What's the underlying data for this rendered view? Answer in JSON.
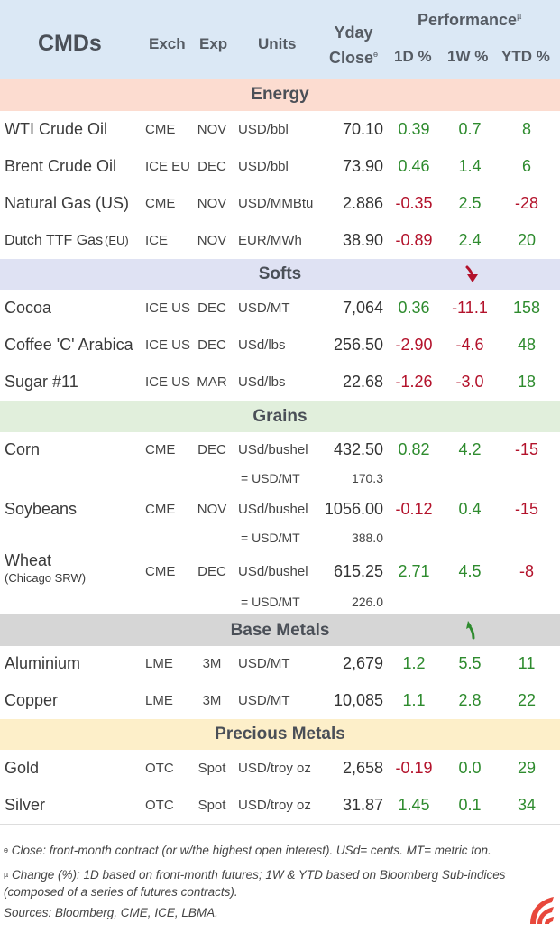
{
  "header": {
    "title": "CMDs",
    "exch": "Exch",
    "exp": "Exp",
    "units": "Units",
    "yday": "Yday",
    "close": "Close",
    "close_mark": "ɵ",
    "performance": "Performance",
    "performance_mark": "µ",
    "d1": "1D %",
    "w1": "1W %",
    "ytd": "YTD %"
  },
  "colors": {
    "header_bg": "#dbe8f5",
    "energy_bg": "#fcdcd0",
    "softs_bg": "#dfe2f3",
    "grains_bg": "#e1efdc",
    "base_metals_bg": "#d6d6d6",
    "precious_metals_bg": "#fdefc9",
    "positive": "#2e8b2e",
    "negative": "#b3122b"
  },
  "sections": {
    "energy": "Energy",
    "softs": "Softs",
    "grains": "Grains",
    "base_metals": "Base Metals",
    "precious_metals": "Precious Metals"
  },
  "rows": {
    "wti": {
      "name": "WTI Crude Oil",
      "exch": "CME",
      "exp": "NOV",
      "units": "USD/bbl",
      "close": "70.10",
      "d1": "0.39",
      "w1": "0.7",
      "ytd": "8"
    },
    "brent": {
      "name": "Brent Crude Oil",
      "exch": "ICE EU",
      "exp": "DEC",
      "units": "USD/bbl",
      "close": "73.90",
      "d1": "0.46",
      "w1": "1.4",
      "ytd": "6"
    },
    "natgas": {
      "name": "Natural Gas (US)",
      "exch": "CME",
      "exp": "NOV",
      "units": "USD/MMBtu",
      "close": "2.886",
      "d1": "-0.35",
      "w1": "2.5",
      "ytd": "-28"
    },
    "ttf": {
      "name": "Dutch TTF Gas",
      "name_suffix": "(EU)",
      "exch": "ICE",
      "exp": "NOV",
      "units": "EUR/MWh",
      "close": "38.90",
      "d1": "-0.89",
      "w1": "2.4",
      "ytd": "20"
    },
    "cocoa": {
      "name": "Cocoa",
      "exch": "ICE US",
      "exp": "DEC",
      "units": "USD/MT",
      "close": "7,064",
      "d1": "0.36",
      "w1": "-11.1",
      "ytd": "158"
    },
    "coffee": {
      "name": "Coffee 'C' Arabica",
      "exch": "ICE US",
      "exp": "DEC",
      "units": "USd/lbs",
      "close": "256.50",
      "d1": "-2.90",
      "w1": "-4.6",
      "ytd": "48"
    },
    "sugar": {
      "name": "Sugar #11",
      "exch": "ICE US",
      "exp": "MAR",
      "units": "USd/lbs",
      "close": "22.68",
      "d1": "-1.26",
      "w1": "-3.0",
      "ytd": "18"
    },
    "corn": {
      "name": "Corn",
      "exch": "CME",
      "exp": "DEC",
      "units": "USd/bushel",
      "close": "432.50",
      "d1": "0.82",
      "w1": "4.2",
      "ytd": "-15",
      "sub_units": "= USD/MT",
      "sub_close": "170.3"
    },
    "soybeans": {
      "name": "Soybeans",
      "exch": "CME",
      "exp": "NOV",
      "units": "USd/bushel",
      "close": "1056.00",
      "d1": "-0.12",
      "w1": "0.4",
      "ytd": "-15",
      "sub_units": "= USD/MT",
      "sub_close": "388.0"
    },
    "wheat": {
      "name": "Wheat",
      "name_note": "(Chicago SRW)",
      "exch": "CME",
      "exp": "DEC",
      "units": "USd/bushel",
      "close": "615.25",
      "d1": "2.71",
      "w1": "4.5",
      "ytd": "-8",
      "sub_units": "= USD/MT",
      "sub_close": "226.0"
    },
    "aluminium": {
      "name": "Aluminium",
      "exch": "LME",
      "exp": "3M",
      "units": "USD/MT",
      "close": "2,679",
      "d1": "1.2",
      "w1": "5.5",
      "ytd": "11"
    },
    "copper": {
      "name": "Copper",
      "exch": "LME",
      "exp": "3M",
      "units": "USD/MT",
      "close": "10,085",
      "d1": "1.1",
      "w1": "2.8",
      "ytd": "22"
    },
    "gold": {
      "name": "Gold",
      "exch": "OTC",
      "exp": "Spot",
      "units": "USD/troy oz",
      "close": "2,658",
      "d1": "-0.19",
      "w1": "0.0",
      "ytd": "29"
    },
    "silver": {
      "name": "Silver",
      "exch": "OTC",
      "exp": "Spot",
      "units": "USD/troy oz",
      "close": "31.87",
      "d1": "1.45",
      "w1": "0.1",
      "ytd": "34"
    }
  },
  "icons": {
    "softs_arrow": "arrow-down-red-icon",
    "base_metals_arrow": "arrow-up-green-icon",
    "logo": "brand-logo-icon"
  },
  "footer": {
    "close_mark": "ɵ",
    "close_note": " Close: front-month contract (or w/the highest open interest). USd= cents. MT= metric ton.",
    "change_mark": "µ",
    "change_note": " Change (%): 1D based on front-month futures; 1W & YTD based on Bloomberg Sub-indices (composed of a series of futures contracts).",
    "sources": "Sources: Bloomberg, CME, ICE, LBMA."
  }
}
